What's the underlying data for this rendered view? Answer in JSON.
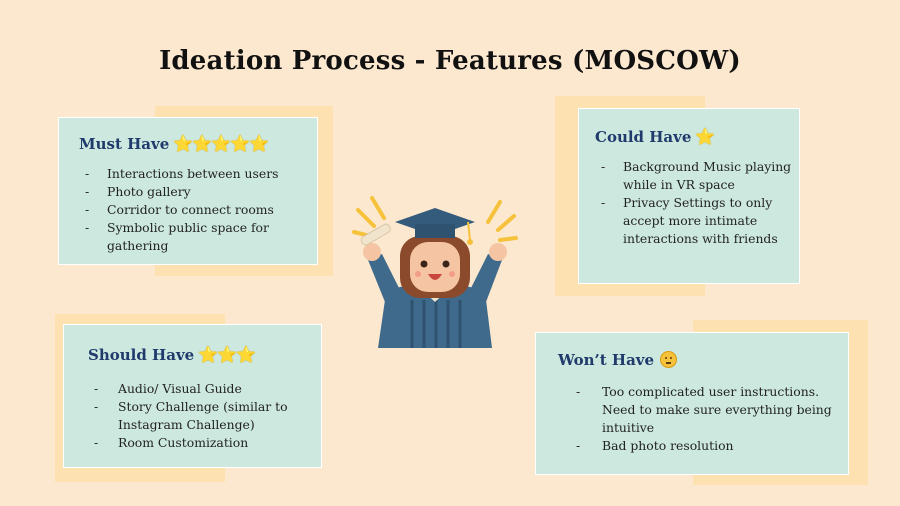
{
  "title": "Ideation Process - Features  (MOSCOW)",
  "must": {
    "heading": "Must Have",
    "stars": "⭐⭐⭐⭐⭐",
    "items": [
      "Interactions between users",
      "Photo gallery",
      "Corridor to connect rooms",
      "Symbolic public space for gathering"
    ]
  },
  "could": {
    "heading": "Could Have",
    "stars": "⭐",
    "items": [
      "Background Music playing while in VR space",
      "Privacy Settings to only accept more intimate interactions with friends"
    ]
  },
  "should": {
    "heading": "Should Have",
    "stars": "⭐⭐⭐",
    "items": [
      "Audio/ Visual Guide",
      "Story Challenge (similar to Instagram Challenge)",
      "Room Customization"
    ]
  },
  "wont": {
    "heading": "Won’t Have",
    "emoji": "thinking-face-icon",
    "items": [
      "Too complicated user instructions. Need to make sure everything being intuitive",
      "Bad photo resolution"
    ]
  },
  "colors": {
    "background": "#fce8cf",
    "card": "#cce8df",
    "card_shadow": "#fde1b0",
    "heading": "#1f3a6b",
    "star": "#f7b500"
  },
  "illustration": "graduate-celebrating-icon"
}
